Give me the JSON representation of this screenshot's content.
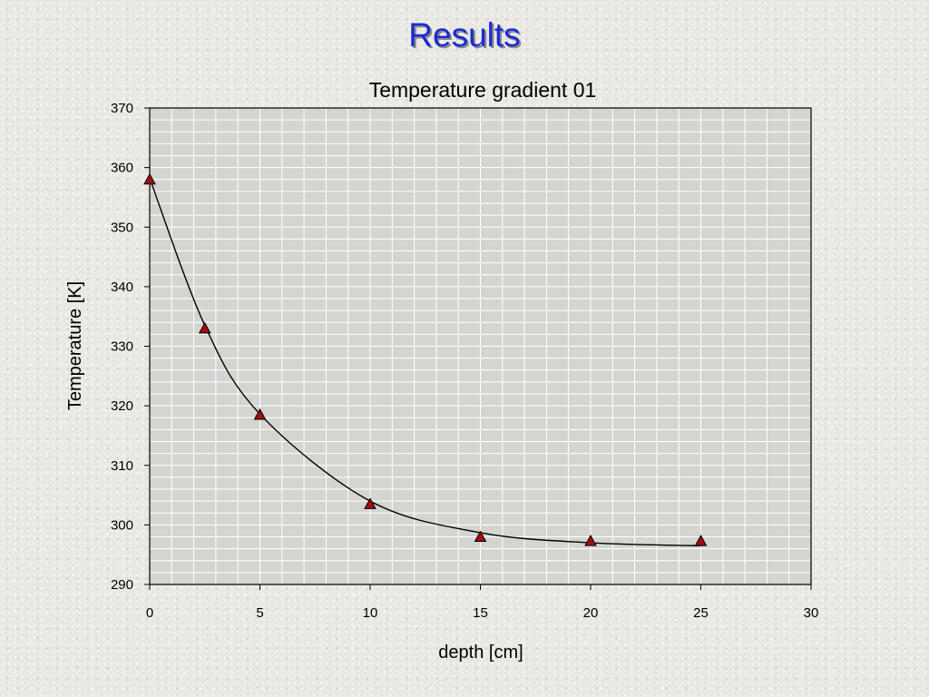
{
  "slide": {
    "title": "Results"
  },
  "chart_data": {
    "type": "scatter",
    "title": "Temperature gradient 01",
    "xlabel": "depth [cm]",
    "ylabel": "Temperature [K]",
    "xlim": [
      0,
      30
    ],
    "ylim": [
      290,
      370
    ],
    "x_ticks": [
      0,
      5,
      10,
      15,
      20,
      25,
      30
    ],
    "y_ticks": [
      290,
      300,
      310,
      320,
      330,
      340,
      350,
      360,
      370
    ],
    "grid": true,
    "legend": "none",
    "marker": "triangle",
    "marker_color": "#a01010",
    "plot_background": "#d4d4d0",
    "series": [
      {
        "x": [
          0,
          2.5,
          5,
          10,
          15,
          20,
          25
        ],
        "y": [
          358,
          333,
          318.5,
          303.5,
          298,
          297.3,
          297.3
        ]
      }
    ],
    "trendline": {
      "type": "exponential",
      "points": [
        [
          0,
          358.2
        ],
        [
          2.5,
          333.5
        ],
        [
          5,
          318.6
        ],
        [
          10,
          304.0
        ],
        [
          15,
          298.7
        ],
        [
          20,
          297.0
        ],
        [
          25,
          296.5
        ]
      ]
    }
  }
}
